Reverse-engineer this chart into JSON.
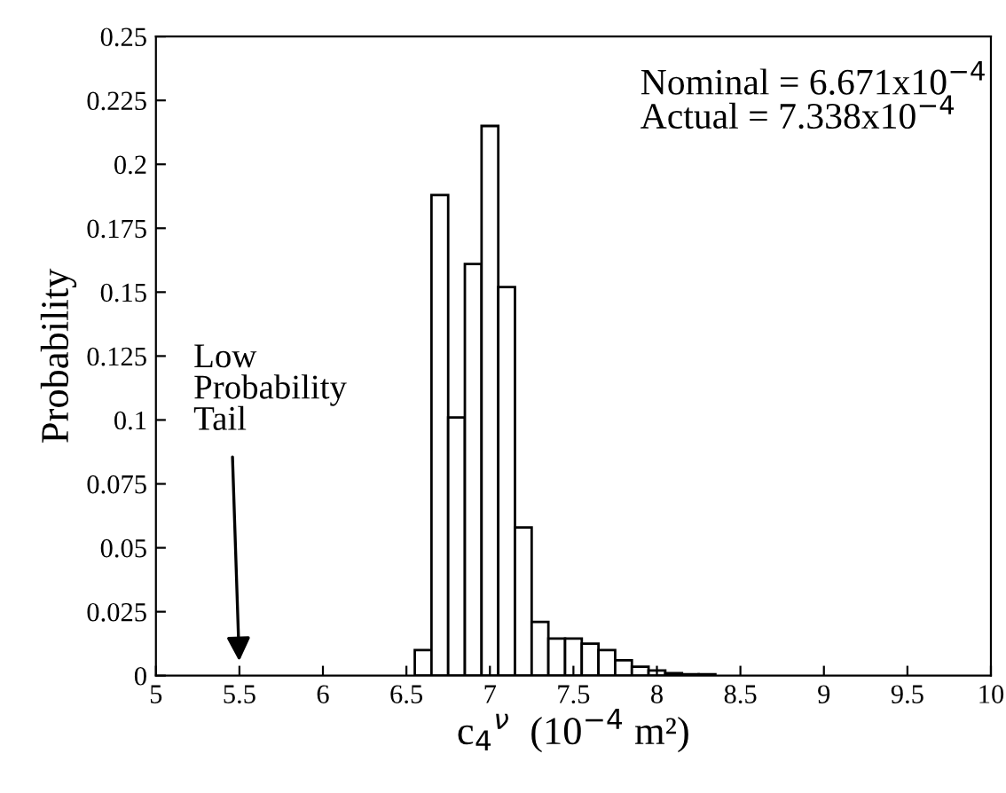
{
  "chart_data": {
    "type": "histogram",
    "xlabel": "c$_{4}$$^{ν}$  (10$^{−4}$ m²)",
    "ylabel": "Probability",
    "bins": [
      6.55,
      6.65,
      6.75,
      6.85,
      6.95,
      7.05,
      7.15,
      7.25,
      7.35,
      7.45,
      7.55,
      7.65,
      7.75,
      7.85,
      7.95,
      8.05,
      8.15,
      8.25,
      8.35,
      8.45,
      8.55,
      8.65,
      8.75
    ],
    "values": [
      0.01,
      0.188,
      0.101,
      0.161,
      0.215,
      0.152,
      0.058,
      0.021,
      0.0145,
      0.0145,
      0.0125,
      0.01,
      0.006,
      0.0035,
      0.002,
      0.001,
      0.0005,
      0.0005,
      null,
      null,
      null,
      null
    ],
    "color": "#ffffff",
    "xlim": [
      5,
      10
    ],
    "ylim": [
      0,
      0.25
    ],
    "xticks": [
      5,
      5.5,
      6,
      6.5,
      7,
      7.5,
      8,
      8.5,
      9,
      9.5,
      10
    ],
    "yticks": [
      0,
      0.025,
      0.05,
      0.075,
      0.1,
      0.125,
      0.15,
      0.175,
      0.2,
      0.225,
      0.25
    ],
    "annotations": [
      "Nominal = 6.671x10$^{−4}$\nActual = 7.338x10$^{−4}$",
      "Low\nProbability\nTail"
    ],
    "grid": false
  }
}
